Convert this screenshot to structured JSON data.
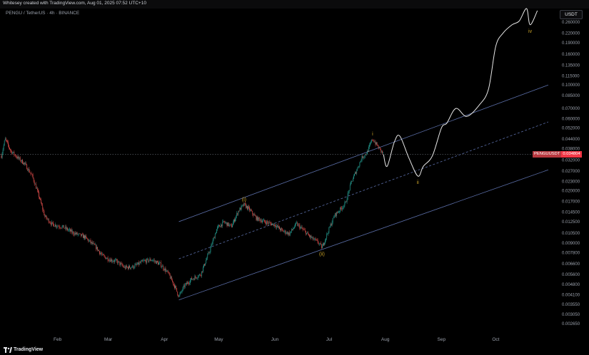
{
  "header": {
    "attribution": "Whitesey created with TradingView.com, Aug 01, 2025 07:52 UTC+10",
    "symbol": "PENGU / TetherUS · 4h · BINANCE",
    "currency": "USDT"
  },
  "price_tag": {
    "name": "PENGUUSDT",
    "value": "0.034804"
  },
  "footer": {
    "brand": "TradingView",
    "logo": "tradingview-logo"
  },
  "colors": {
    "up": "#26a69a",
    "down": "#ef5350",
    "channel": "#5b6ea8",
    "projection": "#e6e6e6",
    "wave_label": "#c9a227",
    "price_tag": "#f23645"
  },
  "chart_data": {
    "type": "candlestick",
    "timeframe": "4h",
    "scale": "log",
    "ylim": [
      0.0023,
      0.32
    ],
    "y_ticks": [
      "0.260000",
      "0.220000",
      "0.190000",
      "0.160000",
      "0.135000",
      "0.115000",
      "0.100000",
      "0.085000",
      "0.070000",
      "0.060000",
      "0.052000",
      "0.044000",
      "0.038000",
      "0.032000",
      "0.027000",
      "0.023000",
      "0.020000",
      "0.017000",
      "0.014500",
      "0.012500",
      "0.010500",
      "0.009000",
      "0.007800",
      "0.006600",
      "0.005600",
      "0.004800",
      "0.004100",
      "0.003550",
      "0.003050",
      "0.002650"
    ],
    "x_ticks": [
      "Feb",
      "Mar",
      "Apr",
      "May",
      "Jun",
      "Jul",
      "Aug",
      "Sep",
      "Oct"
    ],
    "price_path": [
      [
        "2025-01-01",
        0.034
      ],
      [
        "2025-01-03",
        0.044
      ],
      [
        "2025-01-06",
        0.037
      ],
      [
        "2025-01-10",
        0.033
      ],
      [
        "2025-01-14",
        0.03
      ],
      [
        "2025-01-18",
        0.025
      ],
      [
        "2025-01-22",
        0.018
      ],
      [
        "2025-01-25",
        0.0135
      ],
      [
        "2025-01-29",
        0.012
      ],
      [
        "2025-02-04",
        0.0115
      ],
      [
        "2025-02-10",
        0.0105
      ],
      [
        "2025-02-16",
        0.0099
      ],
      [
        "2025-02-22",
        0.0085
      ],
      [
        "2025-02-26",
        0.0074
      ],
      [
        "2025-03-02",
        0.007
      ],
      [
        "2025-03-06",
        0.0068
      ],
      [
        "2025-03-10",
        0.0062
      ],
      [
        "2025-03-15",
        0.0063
      ],
      [
        "2025-03-20",
        0.0068
      ],
      [
        "2025-03-25",
        0.007
      ],
      [
        "2025-03-30",
        0.0065
      ],
      [
        "2025-04-03",
        0.0057
      ],
      [
        "2025-04-07",
        0.0046
      ],
      [
        "2025-04-09",
        0.004
      ],
      [
        "2025-04-12",
        0.0047
      ],
      [
        "2025-04-16",
        0.0052
      ],
      [
        "2025-04-21",
        0.0056
      ],
      [
        "2025-04-26",
        0.008
      ],
      [
        "2025-04-30",
        0.0113
      ],
      [
        "2025-05-04",
        0.0124
      ],
      [
        "2025-05-08",
        0.0116
      ],
      [
        "2025-05-12",
        0.0148
      ],
      [
        "2025-05-15",
        0.0162
      ],
      [
        "2025-05-18",
        0.015
      ],
      [
        "2025-05-22",
        0.0131
      ],
      [
        "2025-05-27",
        0.0124
      ],
      [
        "2025-06-01",
        0.0119
      ],
      [
        "2025-06-05",
        0.0109
      ],
      [
        "2025-06-09",
        0.0104
      ],
      [
        "2025-06-13",
        0.0121
      ],
      [
        "2025-06-17",
        0.0109
      ],
      [
        "2025-06-21",
        0.0098
      ],
      [
        "2025-06-25",
        0.0091
      ],
      [
        "2025-06-27",
        0.0084
      ],
      [
        "2025-07-01",
        0.0112
      ],
      [
        "2025-07-04",
        0.0138
      ],
      [
        "2025-07-07",
        0.015
      ],
      [
        "2025-07-10",
        0.0165
      ],
      [
        "2025-07-13",
        0.0225
      ],
      [
        "2025-07-16",
        0.027
      ],
      [
        "2025-07-19",
        0.033
      ],
      [
        "2025-07-22",
        0.036
      ],
      [
        "2025-07-25",
        0.044
      ],
      [
        "2025-07-28",
        0.039
      ],
      [
        "2025-07-31",
        0.0348
      ]
    ],
    "projection": [
      [
        "2025-07-31",
        0.0348
      ],
      [
        "2025-08-02",
        0.029
      ],
      [
        "2025-08-06",
        0.042
      ],
      [
        "2025-08-09",
        0.046
      ],
      [
        "2025-08-14",
        0.033
      ],
      [
        "2025-08-19",
        0.025
      ],
      [
        "2025-08-22",
        0.029
      ],
      [
        "2025-08-27",
        0.034
      ],
      [
        "2025-09-01",
        0.052
      ],
      [
        "2025-09-04",
        0.056
      ],
      [
        "2025-09-09",
        0.07
      ],
      [
        "2025-09-15",
        0.062
      ],
      [
        "2025-09-22",
        0.074
      ],
      [
        "2025-09-27",
        0.094
      ],
      [
        "2025-10-01",
        0.18
      ],
      [
        "2025-10-05",
        0.22
      ],
      [
        "2025-10-10",
        0.25
      ],
      [
        "2025-10-14",
        0.265
      ],
      [
        "2025-10-18",
        0.32
      ],
      [
        "2025-10-20",
        0.25
      ],
      [
        "2025-10-24",
        0.31
      ]
    ],
    "channel": {
      "upper": [
        [
          "2025-04-09",
          0.0125
        ],
        [
          "2025-10-30",
          0.1
        ]
      ],
      "middle": [
        [
          "2025-04-09",
          0.0071
        ],
        [
          "2025-10-30",
          0.057
        ]
      ],
      "lower": [
        [
          "2025-04-09",
          0.0038
        ],
        [
          "2025-10-30",
          0.0275
        ]
      ]
    },
    "horizontal_level": 0.034804,
    "wave_labels": [
      {
        "label": "(i)",
        "date": "2025-05-15",
        "value": 0.0162,
        "position": "above"
      },
      {
        "label": "(ii)",
        "date": "2025-06-27",
        "value": 0.0084,
        "position": "below"
      },
      {
        "label": "i",
        "date": "2025-07-25",
        "value": 0.044,
        "position": "above"
      },
      {
        "label": "ii",
        "date": "2025-08-19",
        "value": 0.025,
        "position": "below"
      },
      {
        "label": "iv",
        "date": "2025-10-20",
        "value": 0.25,
        "position": "below"
      }
    ]
  }
}
